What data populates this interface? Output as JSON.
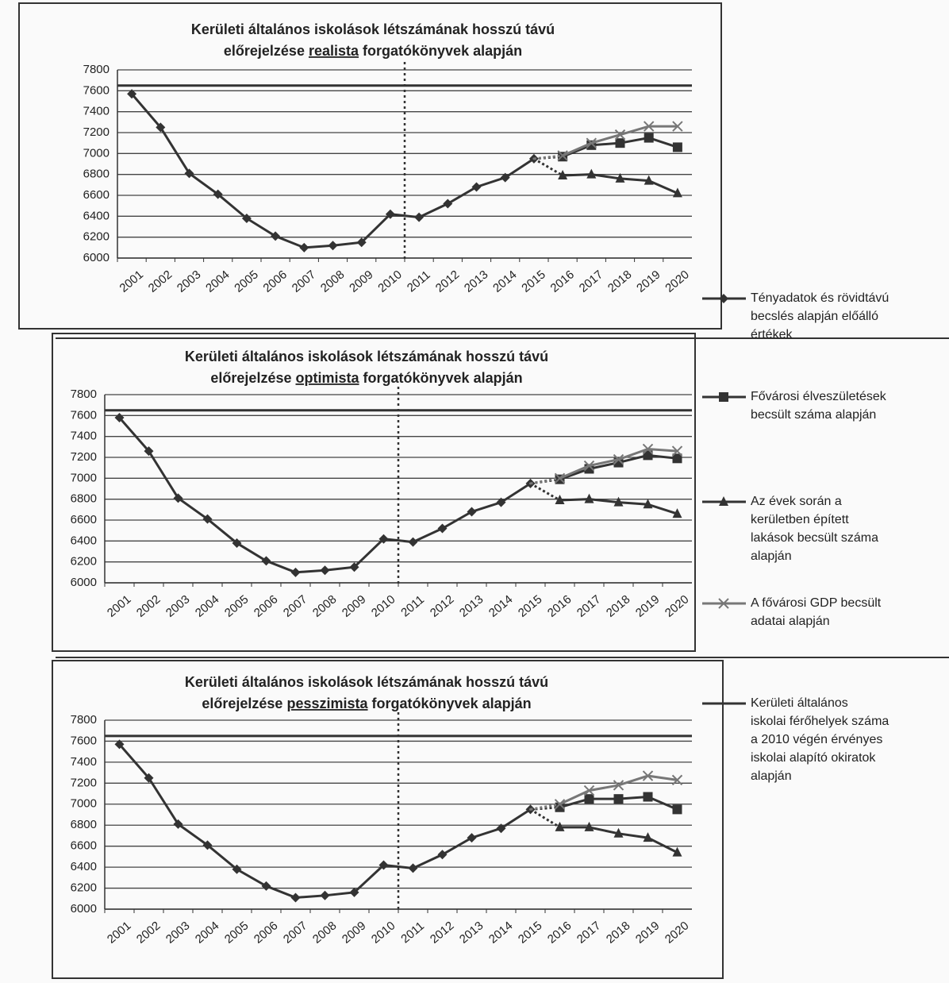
{
  "chart_data": [
    {
      "type": "line",
      "title": "Kerületi általános iskolások létszámának hosszú távú",
      "subtitle": [
        "előrejelzése",
        "realista",
        "forgatókönyvek alapján"
      ],
      "categories": [
        "2001",
        "2002",
        "2003",
        "2004",
        "2005",
        "2006",
        "2007",
        "2008",
        "2009",
        "2010",
        "2011",
        "2012",
        "2013",
        "2014",
        "2015",
        "2016",
        "2017",
        "2018",
        "2019",
        "2020"
      ],
      "ylim": [
        6000,
        7800
      ],
      "yticks": [
        6000,
        6200,
        6400,
        6600,
        6800,
        7000,
        7200,
        7400,
        7600,
        7800
      ],
      "grid": true,
      "series": [
        {
          "name": "Tényadatok és rövidtávú becslés alapján előálló értékek",
          "color": "#333333",
          "marker": "diamond",
          "values": [
            7570,
            7250,
            6810,
            6610,
            6380,
            6210,
            6100,
            6120,
            6150,
            6420,
            6390,
            6520,
            6680,
            6770,
            6950,
            null,
            null,
            null,
            null,
            null
          ]
        },
        {
          "name": "Fővárosi élveszületések becsült száma alapján",
          "color": "#333333",
          "marker": "square",
          "values": [
            null,
            null,
            null,
            null,
            null,
            null,
            null,
            null,
            null,
            null,
            null,
            null,
            null,
            null,
            6950,
            6970,
            7080,
            7100,
            7150,
            7060
          ]
        },
        {
          "name": "Az évek során a kerületben épített lakások becsült száma alapján",
          "color": "#333333",
          "marker": "triangle",
          "values": [
            null,
            null,
            null,
            null,
            null,
            null,
            null,
            null,
            null,
            null,
            null,
            null,
            null,
            null,
            6950,
            6790,
            6800,
            6760,
            6740,
            6620
          ]
        },
        {
          "name": "A fővárosi GDP becsült adatai alapján",
          "color": "#777777",
          "marker": "x",
          "values": [
            null,
            null,
            null,
            null,
            null,
            null,
            null,
            null,
            null,
            null,
            null,
            null,
            null,
            null,
            6950,
            6980,
            7100,
            7180,
            7260,
            7260
          ]
        },
        {
          "name": "Kerületi általános iskolai férőhelyek száma a 2010 végén érvényes iskolai alapító okiratok alapján",
          "color": "#333333",
          "marker": "none",
          "values": [
            7650,
            7650,
            7650,
            7650,
            7650,
            7650,
            7650,
            7650,
            7650,
            7650,
            7650,
            7650,
            7650,
            7650,
            7650,
            7650,
            7650,
            7650,
            7650,
            7650
          ]
        }
      ]
    },
    {
      "type": "line",
      "title": "Kerületi általános iskolások létszámának hosszú távú",
      "subtitle": [
        "előrejelzése",
        "optimista",
        "forgatókönyvek alapján"
      ],
      "categories": [
        "2001",
        "2002",
        "2003",
        "2004",
        "2005",
        "2006",
        "2007",
        "2008",
        "2009",
        "2010",
        "2011",
        "2012",
        "2013",
        "2014",
        "2015",
        "2016",
        "2017",
        "2018",
        "2019",
        "2020"
      ],
      "ylim": [
        6000,
        7800
      ],
      "yticks": [
        6000,
        6200,
        6400,
        6600,
        6800,
        7000,
        7200,
        7400,
        7600,
        7800
      ],
      "grid": true,
      "series": [
        {
          "name": "Tényadatok és rövidtávú becslés alapján előálló értékek",
          "color": "#333333",
          "marker": "diamond",
          "values": [
            7580,
            7260,
            6810,
            6610,
            6380,
            6210,
            6100,
            6120,
            6150,
            6420,
            6390,
            6520,
            6680,
            6770,
            6950,
            null,
            null,
            null,
            null,
            null
          ]
        },
        {
          "name": "Fővárosi élveszületések becsült száma alapján",
          "color": "#333333",
          "marker": "square",
          "values": [
            null,
            null,
            null,
            null,
            null,
            null,
            null,
            null,
            null,
            null,
            null,
            null,
            null,
            null,
            6950,
            6990,
            7090,
            7150,
            7220,
            7190
          ]
        },
        {
          "name": "Az évek során a kerületben épített lakások becsült száma alapján",
          "color": "#333333",
          "marker": "triangle",
          "values": [
            null,
            null,
            null,
            null,
            null,
            null,
            null,
            null,
            null,
            null,
            null,
            null,
            null,
            null,
            6950,
            6790,
            6800,
            6770,
            6750,
            6660
          ]
        },
        {
          "name": "A fővárosi GDP becsült adatai alapján",
          "color": "#777777",
          "marker": "x",
          "values": [
            null,
            null,
            null,
            null,
            null,
            null,
            null,
            null,
            null,
            null,
            null,
            null,
            null,
            null,
            6950,
            7000,
            7120,
            7180,
            7280,
            7260
          ]
        },
        {
          "name": "Kerületi általános iskolai férőhelyek száma a 2010 végén érvényes iskolai alapító okiratok alapján",
          "color": "#333333",
          "marker": "none",
          "values": [
            7650,
            7650,
            7650,
            7650,
            7650,
            7650,
            7650,
            7650,
            7650,
            7650,
            7650,
            7650,
            7650,
            7650,
            7650,
            7650,
            7650,
            7650,
            7650,
            7650
          ]
        }
      ]
    },
    {
      "type": "line",
      "title": "Kerületi általános iskolások létszámának hosszú távú",
      "subtitle": [
        "előrejelzése",
        "pesszimista",
        "forgatókönyvek alapján"
      ],
      "categories": [
        "2001",
        "2002",
        "2003",
        "2004",
        "2005",
        "2006",
        "2007",
        "2008",
        "2009",
        "2010",
        "2011",
        "2012",
        "2013",
        "2014",
        "2015",
        "2016",
        "2017",
        "2018",
        "2019",
        "2020"
      ],
      "ylim": [
        6000,
        7800
      ],
      "yticks": [
        6000,
        6200,
        6400,
        6600,
        6800,
        7000,
        7200,
        7400,
        7600,
        7800
      ],
      "grid": true,
      "series": [
        {
          "name": "Tényadatok és rövidtávú becslés alapján előálló értékek",
          "color": "#333333",
          "marker": "diamond",
          "values": [
            7570,
            7250,
            6810,
            6610,
            6380,
            6220,
            6110,
            6130,
            6160,
            6420,
            6390,
            6520,
            6680,
            6770,
            6950,
            null,
            null,
            null,
            null,
            null
          ]
        },
        {
          "name": "Fővárosi élveszületések becsült száma alapján",
          "color": "#333333",
          "marker": "square",
          "values": [
            null,
            null,
            null,
            null,
            null,
            null,
            null,
            null,
            null,
            null,
            null,
            null,
            null,
            null,
            6950,
            6970,
            7050,
            7050,
            7070,
            6950
          ]
        },
        {
          "name": "Az évek során a kerületben épített lakások becsült száma alapján",
          "color": "#333333",
          "marker": "triangle",
          "values": [
            null,
            null,
            null,
            null,
            null,
            null,
            null,
            null,
            null,
            null,
            null,
            null,
            null,
            null,
            6950,
            6780,
            6780,
            6720,
            6680,
            6540
          ]
        },
        {
          "name": "A fővárosi GDP becsült adatai alapján",
          "color": "#777777",
          "marker": "x",
          "values": [
            null,
            null,
            null,
            null,
            null,
            null,
            null,
            null,
            null,
            null,
            null,
            null,
            null,
            null,
            6950,
            7000,
            7130,
            7180,
            7270,
            7230
          ]
        },
        {
          "name": "Kerületi általános iskolai férőhelyek száma a 2010 végén érvényes iskolai alapító okiratok alapján",
          "color": "#333333",
          "marker": "none",
          "values": [
            7650,
            7650,
            7650,
            7650,
            7650,
            7650,
            7650,
            7650,
            7650,
            7650,
            7650,
            7650,
            7650,
            7650,
            7650,
            7650,
            7650,
            7650,
            7650,
            7650
          ]
        }
      ]
    }
  ]
}
